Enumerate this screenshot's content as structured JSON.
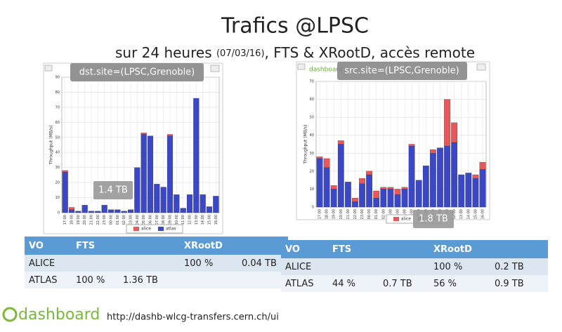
{
  "title": "Trafics @LPSC",
  "subtitle": {
    "main": "sur 24 heures ",
    "date": "(07/03/16)",
    "rest": ", FTS & XRootD, accès remote"
  },
  "chart_data": [
    {
      "type": "bar",
      "stacked": true,
      "ylabel": "Throughput (MB/s)",
      "grid": true,
      "legend": "bottom",
      "filter": "dst.site=(LPSC,Grenoble)",
      "total": "1.4 TB",
      "categories": [
        "17:00",
        "18:00",
        "19:00",
        "20:00",
        "21:00",
        "22:00",
        "23:00",
        "00:00",
        "01:00",
        "02:00",
        "03:00",
        "04:00",
        "05:00",
        "06:00",
        "07:00",
        "08:00",
        "09:00",
        "10:00",
        "11:00",
        "12:00",
        "13:00",
        "14:00",
        "15:00",
        "16:00"
      ],
      "series": [
        {
          "name": "alice",
          "color": "#e8585a",
          "values": [
            1,
            1.5,
            0,
            0,
            0,
            0,
            0,
            0,
            0,
            0,
            0,
            0,
            1,
            0,
            0,
            0,
            1,
            0,
            0,
            0,
            0,
            0,
            0,
            0
          ]
        },
        {
          "name": "atlas",
          "color": "#3a48c8",
          "values": [
            27,
            2,
            1,
            5,
            1,
            1,
            5,
            2,
            2,
            1,
            2,
            30,
            52,
            51,
            19,
            17,
            51,
            12,
            3,
            12,
            76,
            12,
            4,
            11
          ]
        }
      ],
      "ylim": [
        0,
        90
      ],
      "yticks": [
        0,
        10,
        20,
        30,
        40,
        50,
        60,
        70,
        80,
        90
      ]
    },
    {
      "type": "bar",
      "stacked": true,
      "ylabel": "Throughput (MB/s)",
      "grid": true,
      "legend": "bottom",
      "filter": "src.site=(LPSC,Grenoble)",
      "total": "1.8 TB",
      "categories": [
        "17:00",
        "18:00",
        "19:00",
        "20:00",
        "21:00",
        "22:00",
        "23:00",
        "00:00",
        "01:00",
        "02:00",
        "03:00",
        "04:00",
        "05:00",
        "06:00",
        "07:00",
        "08:00",
        "09:00",
        "10:00",
        "11:00",
        "12:00",
        "13:00",
        "14:00",
        "15:00",
        "16:00"
      ],
      "series": [
        {
          "name": "alice",
          "color": "#e8585a",
          "values": [
            1,
            5,
            2,
            2,
            0,
            2,
            3,
            2,
            4,
            1,
            1,
            3,
            1,
            1,
            0,
            0,
            2,
            0,
            26,
            11,
            0,
            0,
            2,
            4
          ]
        },
        {
          "name": "atlas",
          "color": "#3a48c8",
          "values": [
            27,
            22,
            10,
            35,
            14,
            3,
            13,
            18,
            5,
            10,
            10,
            7,
            10,
            34,
            15,
            23,
            30,
            33,
            34,
            36,
            18,
            19,
            16,
            21
          ]
        }
      ],
      "ylim": [
        0,
        70
      ],
      "yticks": [
        0,
        10,
        20,
        30,
        40,
        50,
        60,
        70
      ]
    }
  ],
  "tables": [
    {
      "header": {
        "vo": "VO",
        "fts": "FTS",
        "xrootd": "XRootD"
      },
      "rows": [
        {
          "vo": "ALICE",
          "xrootd_pct": "100 %",
          "xrootd_tb": "0.04 TB"
        },
        {
          "vo": "ATLAS",
          "fts_pct": "100 %",
          "fts_tb": "1.36 TB"
        }
      ]
    },
    {
      "header": {
        "vo": "VO",
        "fts": "FTS",
        "xrootd": "XRootD"
      },
      "rows": [
        {
          "vo": "ALICE",
          "xrootd_pct": "100 %",
          "xrootd_tb": "0.2 TB"
        },
        {
          "vo": "ATLAS",
          "fts_pct": "44 %",
          "fts_tb": "0.7 TB",
          "xrootd_pct": "56 %",
          "xrootd_tb": "0.9 TB"
        }
      ]
    }
  ],
  "footer": {
    "logo": "dashboard",
    "url": "http://dashb-wlcg-transfers.cern.ch/ui"
  }
}
